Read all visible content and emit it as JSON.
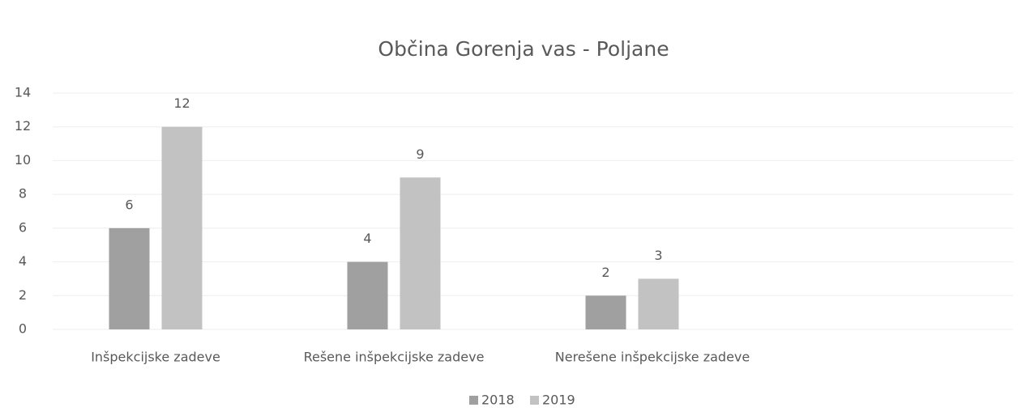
{
  "chart_data": {
    "type": "bar",
    "title": "Občina Gorenja vas - Poljane",
    "categories": [
      "Inšpekcijske zadeve",
      "Rešene inšpekcijske zadeve",
      "Nerešene inšpekcijske zadeve"
    ],
    "series": [
      {
        "name": "2018",
        "color": "#a0a0a0",
        "values": [
          6,
          4,
          2
        ]
      },
      {
        "name": "2019",
        "color": "#c2c2c2",
        "values": [
          12,
          9,
          3
        ]
      }
    ],
    "ylim": [
      0,
      14
    ],
    "yticks": [
      0,
      2,
      4,
      6,
      8,
      10,
      12,
      14
    ],
    "grid": true,
    "legend": "bottom"
  }
}
